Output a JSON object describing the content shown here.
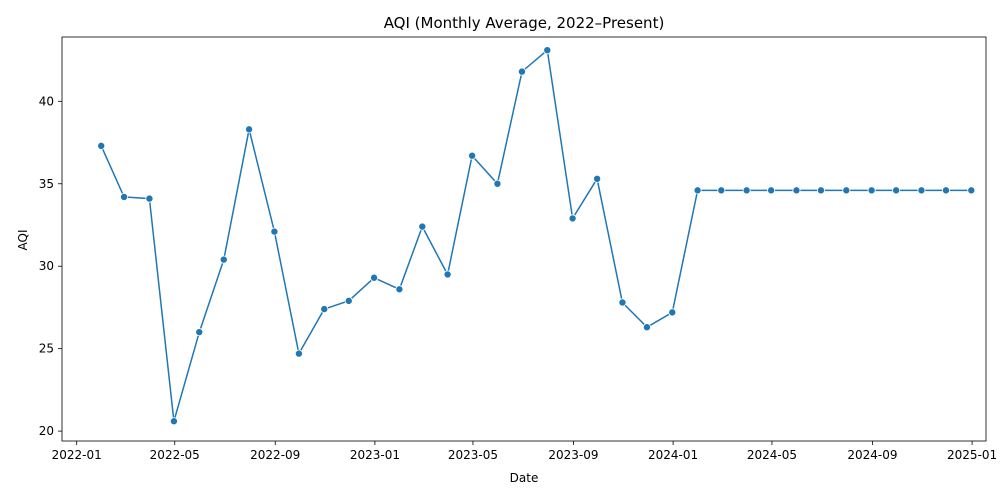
{
  "chart_data": {
    "type": "line",
    "title": "AQI (Monthly Average, 2022–Present)",
    "xlabel": "Date",
    "ylabel": "AQI",
    "x_ticks": [
      "2022-01",
      "2022-05",
      "2022-09",
      "2023-01",
      "2023-05",
      "2023-09",
      "2024-01",
      "2024-05",
      "2024-09",
      "2025-01"
    ],
    "y_ticks": [
      20,
      25,
      30,
      35,
      40
    ],
    "ylim": [
      19.4,
      43.9
    ],
    "xlim": [
      "2021-12-14",
      "2025-01-18"
    ],
    "grid": false,
    "legend": "none",
    "line_color": "#1f77b4",
    "marker": "circle",
    "series": [
      {
        "x": [
          "2022-01-31",
          "2022-02-28",
          "2022-03-31",
          "2022-04-30",
          "2022-05-31",
          "2022-06-30",
          "2022-07-31",
          "2022-08-31",
          "2022-09-30",
          "2022-10-31",
          "2022-11-30",
          "2022-12-31",
          "2023-01-31",
          "2023-02-28",
          "2023-03-31",
          "2023-04-30",
          "2023-05-31",
          "2023-06-30",
          "2023-07-31",
          "2023-08-31",
          "2023-09-30",
          "2023-10-31",
          "2023-11-30",
          "2023-12-31",
          "2024-01-31",
          "2024-02-29",
          "2024-03-31",
          "2024-04-30",
          "2024-05-31",
          "2024-06-30",
          "2024-07-31",
          "2024-08-31",
          "2024-09-30",
          "2024-10-31",
          "2024-11-30",
          "2024-12-31"
        ],
        "y": [
          37.3,
          34.2,
          34.1,
          20.6,
          26.0,
          30.4,
          38.3,
          32.1,
          24.7,
          27.4,
          27.9,
          29.3,
          28.6,
          32.4,
          29.5,
          36.7,
          35.0,
          41.8,
          43.1,
          32.9,
          35.3,
          27.8,
          26.3,
          27.2,
          34.6,
          34.6,
          34.6,
          34.6,
          34.6,
          34.6,
          34.6,
          34.6,
          34.6,
          34.6,
          34.6,
          34.6
        ]
      }
    ]
  }
}
